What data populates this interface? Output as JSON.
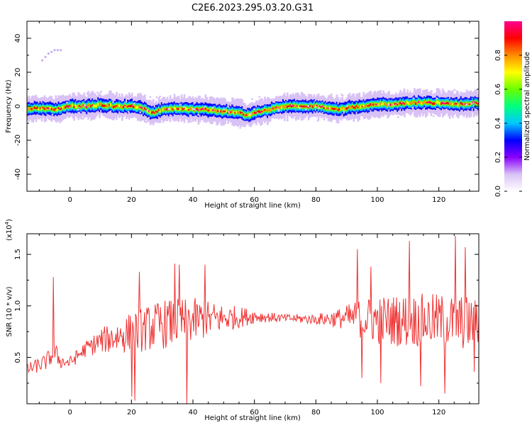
{
  "figure_title": "C2E6.2023.295.03.20.G31",
  "chart_data": [
    {
      "type": "heatmap",
      "title": "C2E6.2023.295.03.20.G31",
      "xlabel": "Height of straight line (km)",
      "ylabel": "Frequency (Hz)",
      "xlim": [
        -14,
        133
      ],
      "ylim": [
        -50,
        50
      ],
      "xticks": [
        0,
        20,
        40,
        60,
        80,
        100,
        120
      ],
      "yticks": [
        -40,
        -20,
        0,
        20,
        40
      ],
      "colorbar": {
        "label": "Normalized spectral amplitude",
        "range": [
          0,
          1
        ],
        "ticks": [
          0.0,
          0.2,
          0.4,
          0.6,
          0.8
        ],
        "tick_labels": [
          "0.0",
          "0.2",
          "0.4",
          "0.6",
          "0.8"
        ],
        "colormap": [
          "#ffffff",
          "#d9c2f5",
          "#8a00ff",
          "#0000ff",
          "#00c8ff",
          "#00ff7f",
          "#6aff00",
          "#ffff00",
          "#ff8c00",
          "#ff0000",
          "#ff0090"
        ]
      },
      "ridge": {
        "x": [
          -14,
          -10,
          -5,
          0,
          5,
          10,
          15,
          20,
          25,
          27,
          30,
          35,
          40,
          45,
          50,
          55,
          58,
          60,
          65,
          70,
          75,
          80,
          85,
          88,
          90,
          95,
          100,
          105,
          110,
          115,
          120,
          125,
          133
        ],
        "y": [
          -2,
          -1,
          -2,
          0,
          0,
          1,
          0,
          0,
          -2,
          -4,
          -2,
          -1,
          -2,
          -2,
          -3,
          -4,
          -5,
          -4,
          -2,
          0,
          0,
          0,
          -1,
          -2,
          -1,
          0,
          1,
          1,
          2,
          2,
          2,
          1,
          2
        ]
      },
      "outlier_points": {
        "x": [
          -9,
          -8,
          -7,
          -6,
          -5,
          -4,
          -3
        ],
        "y": [
          27,
          29,
          31,
          32,
          33,
          33,
          33
        ]
      }
    },
    {
      "type": "line",
      "xlabel": "Height of straight line (km)",
      "ylabel": "SNR (10 * v/v)",
      "y_multiplier_label": "(x10",
      "y_multiplier_exp": "4",
      "xlim": [
        -14,
        133
      ],
      "ylim": [
        0.05,
        1.7
      ],
      "xticks": [
        0,
        20,
        40,
        60,
        80,
        100,
        120
      ],
      "yticks": [
        0.5,
        1.0,
        1.5
      ],
      "ytick_labels": [
        "0.5",
        "1.0",
        "1.5"
      ],
      "line_color": "#ee3333",
      "series": [
        {
          "x_range": [
            -14,
            133
          ],
          "n_points": 600,
          "envelope_x": [
            -14,
            -8,
            -5,
            -3,
            0,
            5,
            10,
            20,
            30,
            40,
            50,
            60,
            64,
            70,
            80,
            88,
            95,
            100,
            110,
            120,
            128,
            133
          ],
          "envelope_mean": [
            0.38,
            0.45,
            0.55,
            0.46,
            0.45,
            0.58,
            0.66,
            0.74,
            0.82,
            0.86,
            0.88,
            0.9,
            0.89,
            0.88,
            0.87,
            0.88,
            0.88,
            0.86,
            0.86,
            0.86,
            0.84,
            0.82
          ],
          "envelope_amp": [
            0.06,
            0.08,
            0.1,
            0.07,
            0.06,
            0.08,
            0.12,
            0.2,
            0.24,
            0.22,
            0.14,
            0.07,
            0.05,
            0.04,
            0.05,
            0.1,
            0.2,
            0.24,
            0.26,
            0.26,
            0.27,
            0.24
          ],
          "spikes": [
            {
              "x": -5.5,
              "y": 1.28
            },
            {
              "x": 20.0,
              "y": 0.12
            },
            {
              "x": 21.0,
              "y": 0.08
            },
            {
              "x": 22.5,
              "y": 1.33
            },
            {
              "x": 34.0,
              "y": 1.41
            },
            {
              "x": 35.5,
              "y": 1.4
            },
            {
              "x": 38.0,
              "y": 0.05
            },
            {
              "x": 44.0,
              "y": 1.4
            },
            {
              "x": 93.5,
              "y": 1.55
            },
            {
              "x": 95.0,
              "y": 0.3
            },
            {
              "x": 98.0,
              "y": 1.38
            },
            {
              "x": 101.0,
              "y": 0.25
            },
            {
              "x": 110.5,
              "y": 1.63
            },
            {
              "x": 114.0,
              "y": 0.22
            },
            {
              "x": 122.0,
              "y": 0.15
            },
            {
              "x": 125.5,
              "y": 1.68
            },
            {
              "x": 128.5,
              "y": 1.57
            },
            {
              "x": 131.5,
              "y": 0.36
            }
          ]
        }
      ]
    }
  ]
}
